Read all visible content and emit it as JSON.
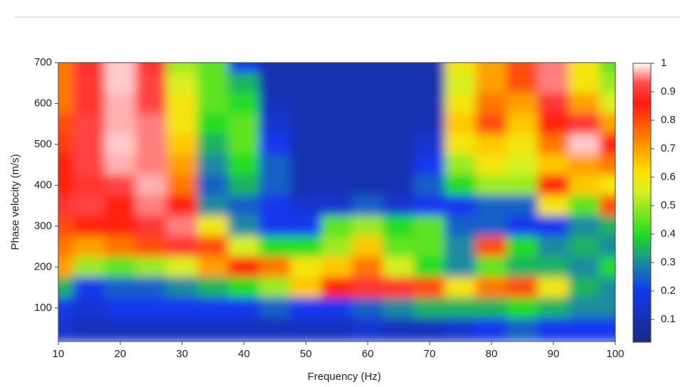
{
  "chart_data": {
    "type": "heatmap",
    "xlabel": "Frequency (Hz)",
    "ylabel": "Phase velocity (m/s)",
    "x": [
      10,
      15,
      20,
      25,
      30,
      35,
      40,
      45,
      50,
      55,
      60,
      65,
      70,
      75,
      80,
      85,
      90,
      95,
      100
    ],
    "y": [
      700,
      650,
      600,
      550,
      500,
      450,
      400,
      350,
      300,
      250,
      200,
      150,
      100,
      50
    ],
    "z": [
      [
        0.75,
        0.9,
        0.98,
        0.9,
        0.5,
        0.45,
        0.2,
        0.1,
        0.1,
        0.1,
        0.1,
        0.1,
        0.1,
        0.6,
        0.7,
        0.8,
        0.95,
        0.6,
        0.45
      ],
      [
        0.75,
        0.9,
        0.98,
        0.92,
        0.55,
        0.45,
        0.35,
        0.1,
        0.1,
        0.1,
        0.1,
        0.1,
        0.1,
        0.55,
        0.7,
        0.8,
        0.95,
        0.6,
        0.5
      ],
      [
        0.75,
        0.9,
        0.97,
        0.92,
        0.6,
        0.45,
        0.4,
        0.12,
        0.1,
        0.1,
        0.1,
        0.1,
        0.1,
        0.6,
        0.75,
        0.7,
        0.9,
        0.7,
        0.55
      ],
      [
        0.8,
        0.92,
        0.97,
        0.95,
        0.6,
        0.4,
        0.45,
        0.15,
        0.1,
        0.1,
        0.1,
        0.1,
        0.1,
        0.65,
        0.8,
        0.65,
        0.85,
        0.9,
        0.7
      ],
      [
        0.82,
        0.92,
        0.98,
        0.95,
        0.65,
        0.35,
        0.45,
        0.2,
        0.1,
        0.1,
        0.1,
        0.1,
        0.15,
        0.6,
        0.65,
        0.6,
        0.75,
        0.98,
        0.85
      ],
      [
        0.85,
        0.92,
        0.97,
        0.95,
        0.7,
        0.3,
        0.4,
        0.25,
        0.1,
        0.1,
        0.1,
        0.1,
        0.2,
        0.5,
        0.6,
        0.55,
        0.65,
        0.7,
        0.75
      ],
      [
        0.85,
        0.9,
        0.92,
        0.97,
        0.75,
        0.25,
        0.35,
        0.25,
        0.1,
        0.1,
        0.1,
        0.1,
        0.25,
        0.4,
        0.5,
        0.5,
        0.85,
        0.65,
        0.6
      ],
      [
        0.9,
        0.92,
        0.85,
        0.95,
        0.85,
        0.3,
        0.25,
        0.2,
        0.15,
        0.15,
        0.25,
        0.15,
        0.2,
        0.2,
        0.25,
        0.25,
        0.6,
        0.45,
        0.8
      ],
      [
        0.8,
        0.85,
        0.85,
        0.9,
        0.95,
        0.6,
        0.3,
        0.2,
        0.2,
        0.45,
        0.5,
        0.4,
        0.45,
        0.25,
        0.25,
        0.2,
        0.2,
        0.3,
        0.35
      ],
      [
        0.75,
        0.7,
        0.75,
        0.8,
        0.9,
        0.8,
        0.55,
        0.4,
        0.4,
        0.5,
        0.65,
        0.45,
        0.45,
        0.3,
        0.8,
        0.4,
        0.3,
        0.35,
        0.3
      ],
      [
        0.7,
        0.5,
        0.45,
        0.5,
        0.55,
        0.7,
        0.85,
        0.75,
        0.6,
        0.65,
        0.75,
        0.55,
        0.4,
        0.3,
        0.45,
        0.35,
        0.35,
        0.3,
        0.4
      ],
      [
        0.35,
        0.2,
        0.25,
        0.25,
        0.3,
        0.35,
        0.4,
        0.5,
        0.65,
        0.85,
        0.9,
        0.9,
        0.8,
        0.6,
        0.75,
        0.8,
        0.6,
        0.35,
        0.3
      ],
      [
        0.2,
        0.15,
        0.2,
        0.2,
        0.2,
        0.2,
        0.2,
        0.25,
        0.2,
        0.2,
        0.25,
        0.3,
        0.35,
        0.35,
        0.35,
        0.4,
        0.35,
        0.3,
        0.3
      ],
      [
        0.15,
        0.12,
        0.12,
        0.12,
        0.12,
        0.12,
        0.12,
        0.12,
        0.12,
        0.12,
        0.15,
        0.12,
        0.12,
        0.15,
        0.2,
        0.25,
        0.2,
        0.2,
        0.2
      ]
    ],
    "xlim": [
      10,
      100
    ],
    "xticks": [
      10,
      20,
      30,
      40,
      50,
      60,
      70,
      80,
      90,
      100
    ],
    "ylim": [
      18,
      700
    ],
    "yticks": [
      100,
      200,
      300,
      400,
      500,
      600,
      700
    ],
    "clim": [
      0.02,
      1
    ],
    "cticks": [
      0.1,
      0.2,
      0.3,
      0.4,
      0.5,
      0.6,
      0.7,
      0.8,
      0.9,
      1
    ],
    "colorscale": [
      [
        0.02,
        "#1a2a80"
      ],
      [
        0.2,
        "#1238ee"
      ],
      [
        0.3,
        "#1a8aa0"
      ],
      [
        0.4,
        "#22dd22"
      ],
      [
        0.55,
        "#d8f020"
      ],
      [
        0.62,
        "#ffe000"
      ],
      [
        0.72,
        "#ff9000"
      ],
      [
        0.86,
        "#ff1a10"
      ],
      [
        0.93,
        "#ff4a4a"
      ],
      [
        1,
        "#ffffff"
      ]
    ]
  }
}
